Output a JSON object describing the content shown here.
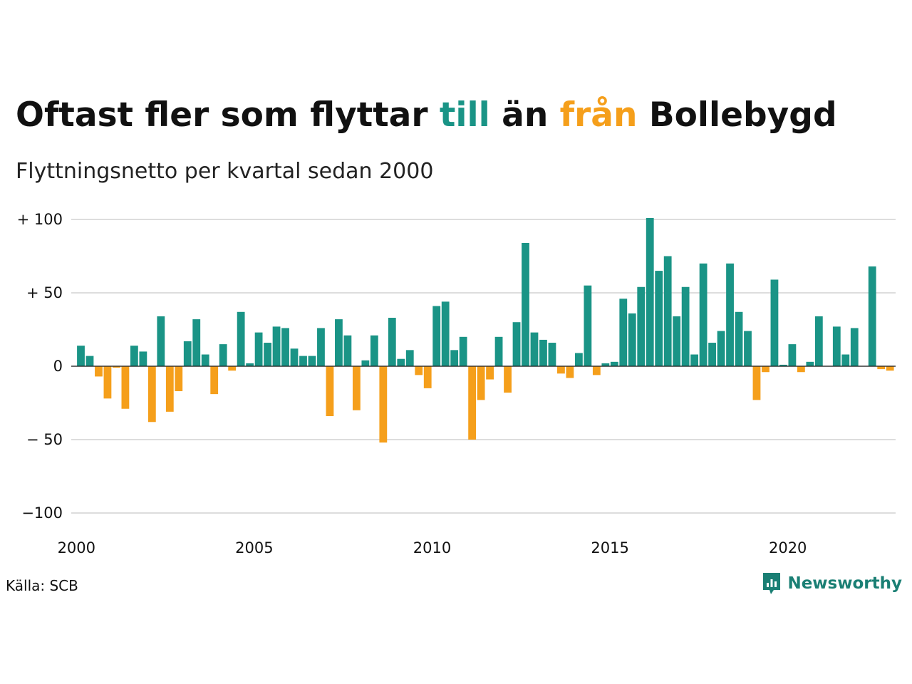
{
  "header": {
    "title_parts": [
      "Oftast fler som flyttar ",
      "till",
      " än ",
      "från",
      " Bollebygd"
    ],
    "subtitle": "Flyttningsnetto per kvartal sedan 2000"
  },
  "footer": {
    "source": "Källa: SCB",
    "brand": "Newsworthy",
    "brand_icon": "chart-speech-bubble-icon"
  },
  "colors": {
    "positive": "#1a9486",
    "negative": "#f59f1b",
    "grid": "#dddddd",
    "brand": "#1a7f74"
  },
  "chart_data": {
    "type": "bar",
    "title": "Oftast fler som flyttar till än från Bollebygd",
    "subtitle": "Flyttningsnetto per kvartal sedan 2000",
    "xlabel": "",
    "ylabel": "",
    "x_start": 2000,
    "periods_per_year": 4,
    "x_ticks": [
      2000,
      2005,
      2010,
      2015,
      2020
    ],
    "y_ticks": [
      100,
      50,
      0,
      -50,
      -100
    ],
    "y_tick_labels": [
      "+ 100",
      "+  50",
      "0",
      "− 50",
      "−100"
    ],
    "ylim": [
      -100,
      100
    ],
    "grid": true,
    "legend": "none",
    "values": [
      14,
      7,
      -7,
      -22,
      -1,
      -29,
      14,
      10,
      -38,
      34,
      -31,
      -17,
      17,
      32,
      8,
      -19,
      15,
      -3,
      37,
      2,
      23,
      16,
      27,
      26,
      12,
      7,
      7,
      26,
      -34,
      32,
      21,
      -30,
      4,
      21,
      -52,
      33,
      5,
      11,
      -6,
      -15,
      41,
      44,
      11,
      20,
      -50,
      -23,
      -9,
      20,
      -18,
      30,
      84,
      23,
      18,
      16,
      -5,
      -8,
      9,
      55,
      -6,
      2,
      3,
      46,
      36,
      54,
      101,
      65,
      75,
      34,
      54,
      8,
      70,
      16,
      24,
      70,
      37,
      24,
      -23,
      -4,
      59,
      1,
      15,
      -4,
      3,
      34,
      0,
      27,
      8,
      26,
      0,
      68,
      -2,
      -3
    ]
  }
}
